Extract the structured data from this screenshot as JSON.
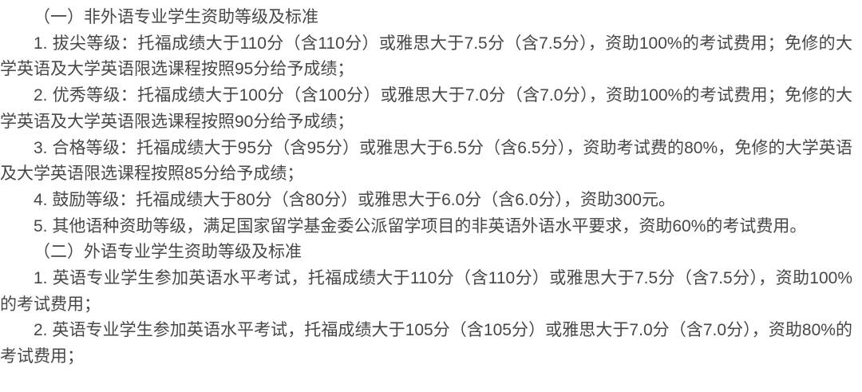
{
  "page": {
    "background": "#ffffff",
    "text_color": "#474747"
  },
  "document": {
    "section1": {
      "heading": "（一）非外语专业学生资助等级及标准",
      "items": [
        "1. 拔尖等级：托福成绩大于110分（含110分）或雅思大于7.5分（含7.5分），资助100%的考试费用；免修的大学英语及大学英语限选课程按照95分给予成绩；",
        "2. 优秀等级：托福成绩大于100分（含100分）或雅思大于7.0分（含7.0分），资助100%的考试费用；免修的大学英语及大学英语限选课程按照90分给予成绩；",
        "3. 合格等级：托福成绩大于95分（含95分）或雅思大于6.5分（含6.5分），资助考试费的80%，免修的大学英语及大学英语限选课程按照85分给予成绩；",
        "4. 鼓励等级：托福成绩大于80分（含80分）或雅思大于6.0分（含6.0分），资助300元。",
        "5. 其他语种资助等级，满足国家留学基金委公派留学项目的非英语外语水平要求，资助60%的考试费用。"
      ]
    },
    "section2": {
      "heading": "（二）外语专业学生资助等级及标准",
      "items": [
        "1. 英语专业学生参加英语水平考试，托福成绩大于110分（含110分）或雅思大于7.5分（含7.5分），资助100%的考试费用；",
        "2. 英语专业学生参加英语水平考试，托福成绩大于105分（含105分）或雅思大于7.0分（含7.0分），资助80%的考试费用；"
      ]
    }
  }
}
